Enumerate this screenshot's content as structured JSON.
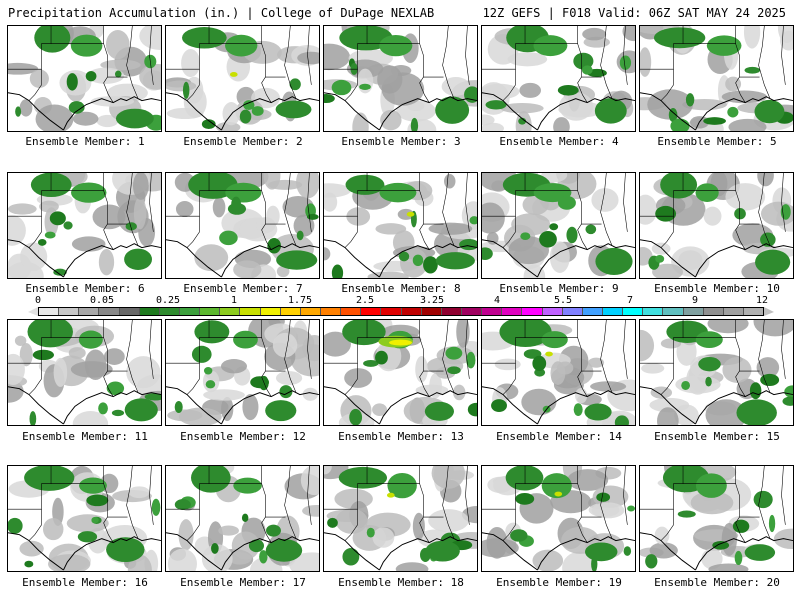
{
  "header": {
    "left_title": "Precipitation Accumulation (in.) | College of DuPage NEXLAB",
    "right_title": "12Z GEFS | F018 Valid: 06Z SAT MAY 24 2025"
  },
  "members": [
    "Ensemble Member: 1",
    "Ensemble Member: 2",
    "Ensemble Member: 3",
    "Ensemble Member: 4",
    "Ensemble Member: 5",
    "Ensemble Member: 6",
    "Ensemble Member: 7",
    "Ensemble Member: 8",
    "Ensemble Member: 9",
    "Ensemble Member: 10",
    "Ensemble Member: 11",
    "Ensemble Member: 12",
    "Ensemble Member: 13",
    "Ensemble Member: 14",
    "Ensemble Member: 15",
    "Ensemble Member: 16",
    "Ensemble Member: 17",
    "Ensemble Member: 18",
    "Ensemble Member: 19",
    "Ensemble Member: 20"
  ],
  "colorbar": {
    "ticks": [
      "0",
      "0.05",
      "0.25",
      "1",
      "1.75",
      "2.5",
      "3.25",
      "4",
      "5.5",
      "7",
      "9",
      "12"
    ],
    "colors": [
      "#e8e8e8",
      "#c8c8c8",
      "#a8a8a8",
      "#888888",
      "#686868",
      "#1e7a1e",
      "#2e8b2e",
      "#3ca03c",
      "#5cb82e",
      "#8ccc1e",
      "#c8e000",
      "#f0f000",
      "#ffd000",
      "#ffa800",
      "#ff8000",
      "#ff5000",
      "#ff0000",
      "#e00000",
      "#c00000",
      "#a00000",
      "#900030",
      "#a00060",
      "#c00090",
      "#e000c0",
      "#ff00ff",
      "#c060ff",
      "#8080ff",
      "#40a0ff",
      "#00d0ff",
      "#00ffff",
      "#40e0e0",
      "#60c0c0",
      "#80a0a0",
      "#909090",
      "#a0a0a0",
      "#b0b0b0"
    ]
  }
}
